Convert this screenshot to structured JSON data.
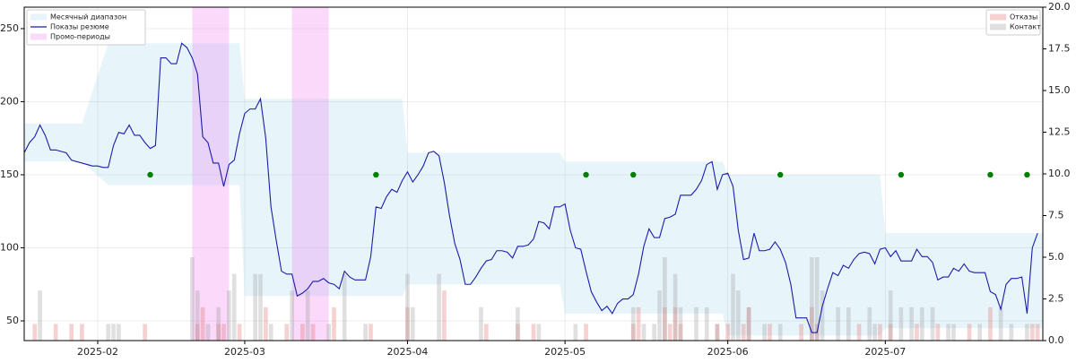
{
  "chart_data": {
    "type": "line",
    "x": [
      18,
      19,
      20,
      21,
      22,
      23,
      24,
      25,
      26,
      27,
      28,
      29,
      30,
      31,
      32,
      33,
      34,
      35,
      36,
      37,
      38,
      39,
      40,
      41,
      42,
      43,
      44,
      45,
      46,
      47,
      48,
      49,
      50,
      51,
      52,
      53,
      54,
      55,
      56,
      57,
      58,
      59,
      60,
      61,
      62,
      63,
      64,
      65,
      66,
      67,
      68,
      69,
      70,
      71,
      72,
      73,
      74,
      75,
      76,
      77,
      78,
      79,
      80,
      81,
      82,
      83,
      84,
      85,
      86,
      87,
      88,
      89,
      90,
      91,
      92,
      93,
      94,
      95,
      96,
      97,
      98,
      99,
      100,
      101,
      102,
      103,
      104,
      105,
      106,
      107,
      108,
      109,
      110,
      111,
      112,
      113,
      114,
      115,
      116,
      117,
      118,
      119,
      120,
      121,
      122,
      123,
      124,
      125,
      126,
      127,
      128,
      129,
      130,
      131,
      132,
      133,
      134,
      135,
      136,
      137,
      138,
      139,
      140,
      141,
      142,
      143,
      144,
      145,
      146,
      147,
      148,
      149,
      150,
      151,
      152,
      153,
      154,
      155,
      156,
      157,
      158,
      159,
      160,
      161,
      162,
      163,
      164,
      165,
      166,
      167,
      168,
      169,
      170,
      171,
      172,
      173,
      174,
      175,
      176,
      177,
      178,
      179,
      180,
      181,
      182,
      183,
      184,
      185,
      186,
      187,
      188,
      189,
      190,
      191,
      192,
      193,
      194,
      195,
      196,
      197,
      198,
      199,
      200,
      201,
      202,
      203,
      204,
      205,
      206,
      207,
      208,
      209,
      210,
      211
    ],
    "series": [
      {
        "name": "Месячный диапазон",
        "type": "band",
        "color": "#87ceeb",
        "x": [
          18,
          29,
          34,
          59,
          60,
          90,
          91,
          120,
          121,
          151,
          152,
          181,
          182,
          212
        ],
        "lower": [
          159,
          159,
          143,
          143,
          67,
          67,
          75,
          75,
          55,
          55,
          40,
          40,
          45,
          45
        ],
        "upper": [
          185,
          185,
          240,
          240,
          202,
          202,
          165,
          165,
          159,
          159,
          150,
          150,
          110,
          110
        ]
      },
      {
        "name": "Показы резюме",
        "type": "line",
        "color": "#1c1ca8",
        "values": [
          165,
          172,
          176,
          184,
          177,
          167,
          167,
          166,
          165,
          160,
          159,
          158,
          157,
          156,
          156,
          155,
          155,
          170,
          179,
          178,
          184,
          177,
          177,
          172,
          168,
          170,
          230,
          230,
          226,
          226,
          240,
          237,
          230,
          219,
          176,
          172,
          158,
          158,
          142,
          157,
          160,
          178,
          192,
          195,
          195,
          202,
          175,
          128,
          105,
          84,
          82,
          82,
          67,
          69,
          72,
          77,
          77,
          79,
          76,
          75,
          72,
          84,
          80,
          78,
          78,
          78,
          94,
          128,
          127,
          135,
          140,
          138,
          146,
          152,
          145,
          150,
          156,
          165,
          166,
          163,
          145,
          122,
          103,
          92,
          75,
          75,
          80,
          86,
          91,
          92,
          98,
          98,
          97,
          93,
          101,
          101,
          102,
          106,
          118,
          117,
          113,
          128,
          128,
          130,
          112,
          100,
          99,
          84,
          70,
          63,
          57,
          60,
          55,
          62,
          65,
          65,
          68,
          82,
          101,
          113,
          107,
          107,
          120,
          121,
          123,
          136,
          136,
          136,
          140,
          146,
          157,
          159,
          140,
          150,
          151,
          142,
          112,
          92,
          93,
          110,
          98,
          98,
          99,
          104,
          99,
          90,
          75,
          52,
          52,
          52,
          42,
          42,
          60,
          72,
          83,
          81,
          88,
          86,
          92,
          96,
          97,
          96,
          89,
          99,
          100,
          94,
          98,
          91,
          91,
          91,
          99,
          94,
          94,
          90,
          78,
          80,
          80,
          86,
          84,
          89,
          84,
          83,
          83,
          83,
          70,
          68,
          58,
          75,
          79,
          79,
          80,
          55,
          100,
          110
        ]
      },
      {
        "name": "Промо-периоды",
        "type": "span",
        "color": "#ee82ee",
        "spans": [
          [
            50,
            57
          ],
          [
            69,
            76
          ]
        ]
      },
      {
        "type": "scatter",
        "color": "#008000",
        "x": [
          42,
          85,
          125,
          134,
          162,
          185,
          202,
          209
        ],
        "values": [
          150,
          150,
          150,
          150,
          150,
          150,
          150,
          150
        ]
      },
      {
        "name": "Отказы",
        "type": "bar",
        "axis": "y2",
        "color": "#e06666",
        "x": [
          20,
          24,
          27,
          29,
          41,
          51,
          52,
          55,
          56,
          59,
          64,
          68,
          71,
          73,
          77,
          84,
          91,
          98,
          106,
          112,
          115,
          125,
          134,
          135,
          140,
          141,
          142,
          143,
          150,
          152,
          155,
          156,
          160,
          166,
          168,
          169,
          177,
          181,
          183,
          188,
          192,
          198,
          202,
          210,
          211
        ],
        "values": [
          1,
          1,
          1,
          1,
          1,
          1,
          2,
          1,
          1,
          1,
          2,
          1,
          1,
          1,
          2,
          1,
          2,
          3,
          1,
          1,
          1,
          1,
          1,
          2,
          2,
          1,
          2,
          1,
          1,
          1,
          1,
          2,
          1,
          1,
          2,
          1,
          1,
          1,
          1,
          1,
          1,
          1,
          2,
          1,
          1
        ]
      },
      {
        "name": "Контакт",
        "type": "bar",
        "axis": "y2",
        "color": "#999999",
        "x": [
          21,
          34,
          35,
          36,
          50,
          51,
          53,
          55,
          57,
          58,
          62,
          63,
          65,
          69,
          72,
          76,
          79,
          83,
          91,
          92,
          97,
          105,
          112,
          116,
          123,
          134,
          136,
          138,
          139,
          140,
          142,
          143,
          146,
          148,
          150,
          153,
          154,
          156,
          159,
          162,
          168,
          169,
          170,
          173,
          175,
          179,
          180,
          183,
          185,
          187,
          189,
          191,
          194,
          195,
          200,
          204,
          206,
          209
        ],
        "values": [
          3,
          1,
          1,
          1,
          5,
          3,
          1,
          2,
          3,
          4,
          4,
          4,
          1,
          3,
          3,
          1,
          4,
          1,
          4,
          2,
          4,
          2,
          2,
          1,
          1,
          2,
          1,
          1,
          3,
          5,
          4,
          2,
          2,
          2,
          1,
          4,
          3,
          2,
          1,
          1,
          5,
          5,
          3,
          2,
          2,
          2,
          1,
          3,
          2,
          2,
          2,
          2,
          1,
          1,
          1,
          2,
          1,
          1
        ]
      }
    ],
    "xlim": [
      18,
      212
    ],
    "xticks": [
      {
        "value": 32,
        "label": "2025-02"
      },
      {
        "value": 60,
        "label": "2025-03"
      },
      {
        "value": 91,
        "label": "2025-04"
      },
      {
        "value": 121,
        "label": "2025-05"
      },
      {
        "value": 152,
        "label": "2025-06"
      },
      {
        "value": 182,
        "label": "2025-07"
      }
    ],
    "ylim": [
      36.5,
      264.7
    ],
    "yticks": [
      50,
      100,
      150,
      200,
      250
    ],
    "y2lim": [
      0,
      20
    ],
    "y2ticks": [
      {
        "value": 0,
        "label": "0.0"
      },
      2.5,
      {
        "value": 5,
        "label": "5.0"
      },
      7.5,
      {
        "value": 10,
        "label": "10.0"
      },
      12.5,
      {
        "value": 15,
        "label": "15.0"
      },
      17.5,
      {
        "value": 20,
        "label": "20.0"
      }
    ],
    "grid": true,
    "legend": "upper left",
    "legend2": "upper right"
  }
}
